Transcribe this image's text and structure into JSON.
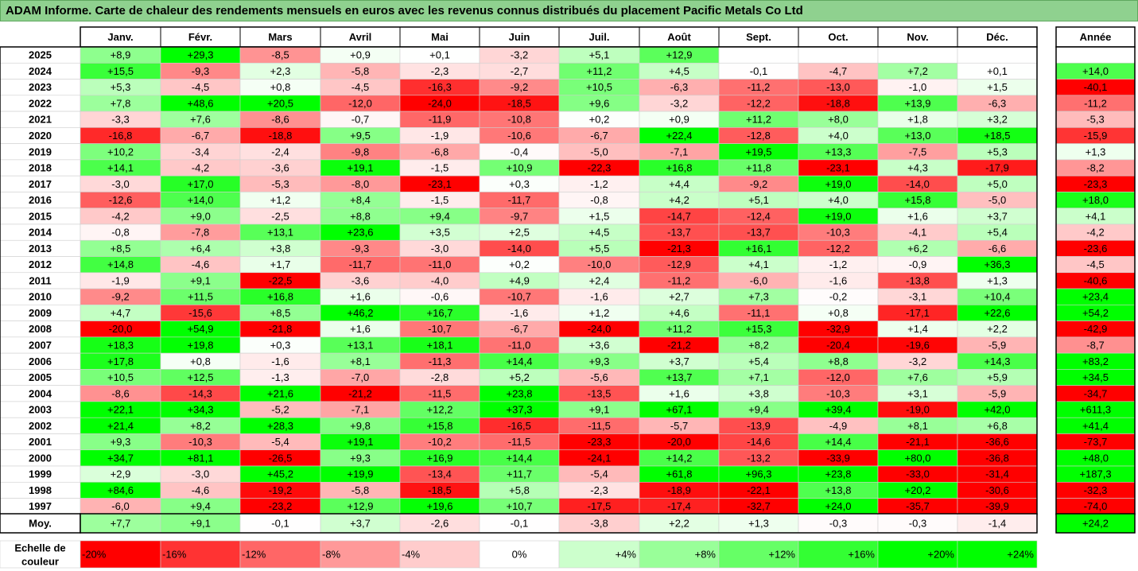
{
  "title": "ADAM Informe. Carte de chaleur des rendements mensuels en euros avec les revenus connus distribués du placement Pacific Metals Co Ltd",
  "chart_data": {
    "type": "heatmap",
    "columns": [
      "Janv.",
      "Févr.",
      "Mars",
      "Avril",
      "Mai",
      "Juin",
      "Juil.",
      "Août",
      "Sept.",
      "Oct.",
      "Nov.",
      "Déc."
    ],
    "annual_header": "Année",
    "rows": [
      {
        "year": "2025",
        "values": [
          8.9,
          29.3,
          -8.5,
          0.9,
          0.1,
          -3.2,
          5.1,
          12.9,
          null,
          null,
          null,
          null
        ],
        "annual": null
      },
      {
        "year": "2024",
        "values": [
          15.5,
          -9.3,
          2.3,
          -5.8,
          -2.3,
          -2.7,
          11.2,
          4.5,
          -0.1,
          -4.7,
          7.2,
          0.1
        ],
        "annual": 14.0
      },
      {
        "year": "2023",
        "values": [
          5.3,
          -4.5,
          0.8,
          -4.5,
          -16.3,
          -9.2,
          10.5,
          -6.3,
          -11.2,
          -13.0,
          -1.0,
          1.5
        ],
        "annual": -40.1
      },
      {
        "year": "2022",
        "values": [
          7.8,
          48.6,
          20.5,
          -12.0,
          -24.0,
          -18.5,
          9.6,
          -3.2,
          -12.2,
          -18.8,
          13.9,
          -6.3
        ],
        "annual": -11.2
      },
      {
        "year": "2021",
        "values": [
          -3.3,
          7.6,
          -8.6,
          -0.7,
          -11.9,
          -10.8,
          0.2,
          0.9,
          11.2,
          8.0,
          1.8,
          3.2
        ],
        "annual": -5.3
      },
      {
        "year": "2020",
        "values": [
          -16.8,
          -6.7,
          -18.8,
          9.5,
          -1.9,
          -10.6,
          -6.7,
          22.4,
          -12.8,
          4.0,
          13.0,
          18.5
        ],
        "annual": -15.9
      },
      {
        "year": "2019",
        "values": [
          10.2,
          -3.4,
          -2.4,
          -9.8,
          -6.8,
          -0.4,
          -5.0,
          -7.1,
          19.5,
          13.3,
          -7.5,
          5.3
        ],
        "annual": 1.3
      },
      {
        "year": "2018",
        "values": [
          14.1,
          -4.2,
          -3.6,
          19.1,
          -1.5,
          10.9,
          -22.3,
          16.8,
          11.8,
          -23.1,
          4.3,
          -17.9
        ],
        "annual": -8.2
      },
      {
        "year": "2017",
        "values": [
          -3.0,
          17.0,
          -5.3,
          -8.0,
          -23.1,
          0.3,
          -1.2,
          4.4,
          -9.2,
          19.0,
          -14.0,
          5.0
        ],
        "annual": -23.3
      },
      {
        "year": "2016",
        "values": [
          -12.6,
          14.0,
          1.2,
          8.4,
          -1.5,
          -11.7,
          -0.8,
          4.2,
          5.1,
          4.0,
          15.8,
          -5.0
        ],
        "annual": 18.0
      },
      {
        "year": "2015",
        "values": [
          -4.2,
          9.0,
          -2.5,
          8.8,
          9.4,
          -9.7,
          1.5,
          -14.7,
          -12.4,
          19.0,
          1.6,
          3.7
        ],
        "annual": 4.1
      },
      {
        "year": "2014",
        "values": [
          -0.8,
          -7.8,
          13.1,
          23.6,
          3.5,
          2.5,
          4.5,
          -13.7,
          -13.7,
          -10.3,
          -4.1,
          5.4
        ],
        "annual": -4.2
      },
      {
        "year": "2013",
        "values": [
          8.5,
          6.4,
          3.8,
          -9.3,
          -3.0,
          -14.0,
          5.5,
          -21.3,
          16.1,
          -12.2,
          6.2,
          -6.6
        ],
        "annual": -23.6
      },
      {
        "year": "2012",
        "values": [
          14.8,
          -4.6,
          1.7,
          -11.7,
          -11.0,
          0.2,
          -10.0,
          -12.9,
          4.1,
          -1.2,
          -0.9,
          36.3
        ],
        "annual": -4.5
      },
      {
        "year": "2011",
        "values": [
          -1.9,
          9.1,
          -22.5,
          -3.6,
          -4.0,
          4.9,
          2.4,
          -11.2,
          -6.0,
          -1.6,
          -13.8,
          1.3
        ],
        "annual": -40.6
      },
      {
        "year": "2010",
        "values": [
          -9.2,
          11.5,
          16.8,
          1.6,
          -0.6,
          -10.7,
          -1.6,
          2.7,
          7.3,
          -0.2,
          -3.1,
          10.4
        ],
        "annual": 23.4
      },
      {
        "year": "2009",
        "values": [
          4.7,
          -15.6,
          8.5,
          46.2,
          16.7,
          -1.6,
          1.2,
          4.6,
          -11.1,
          0.8,
          -17.1,
          22.6
        ],
        "annual": 54.2
      },
      {
        "year": "2008",
        "values": [
          -20.0,
          54.9,
          -21.8,
          1.6,
          -10.7,
          -6.7,
          -24.0,
          11.2,
          15.3,
          -32.9,
          1.4,
          2.2
        ],
        "annual": -42.9
      },
      {
        "year": "2007",
        "values": [
          18.3,
          19.8,
          0.3,
          13.1,
          18.1,
          -11.0,
          3.6,
          -21.2,
          8.2,
          -20.4,
          -19.6,
          -5.9
        ],
        "annual": -8.7
      },
      {
        "year": "2006",
        "values": [
          17.8,
          0.8,
          -1.6,
          8.1,
          -11.3,
          14.4,
          9.3,
          3.7,
          5.4,
          8.8,
          -3.2,
          14.3
        ],
        "annual": 83.2
      },
      {
        "year": "2005",
        "values": [
          10.5,
          12.5,
          -1.3,
          -7.0,
          -2.8,
          5.2,
          -5.6,
          13.7,
          7.1,
          -12.0,
          7.6,
          5.9
        ],
        "annual": 34.5
      },
      {
        "year": "2004",
        "values": [
          -8.6,
          -14.3,
          21.6,
          -21.2,
          -11.5,
          23.8,
          -13.5,
          1.6,
          3.8,
          -10.3,
          3.1,
          -5.9
        ],
        "annual": -34.7
      },
      {
        "year": "2003",
        "values": [
          22.1,
          34.3,
          -5.2,
          -7.1,
          12.2,
          37.3,
          9.1,
          67.1,
          9.4,
          39.4,
          -19.0,
          42.0
        ],
        "annual": 611.3
      },
      {
        "year": "2002",
        "values": [
          21.4,
          8.2,
          28.3,
          9.8,
          15.8,
          -16.5,
          -11.5,
          -5.7,
          -13.9,
          -4.9,
          8.1,
          6.8
        ],
        "annual": 41.4
      },
      {
        "year": "2001",
        "values": [
          9.3,
          -10.3,
          -5.4,
          19.1,
          -10.2,
          -11.5,
          -23.3,
          -20.0,
          -14.6,
          14.4,
          -21.1,
          -36.6
        ],
        "annual": -73.7
      },
      {
        "year": "2000",
        "values": [
          34.7,
          81.1,
          -26.5,
          9.3,
          16.9,
          14.4,
          -24.1,
          14.2,
          -13.2,
          -33.9,
          80.0,
          -36.8
        ],
        "annual": 48.0
      },
      {
        "year": "1999",
        "values": [
          2.9,
          -3.0,
          45.2,
          19.9,
          -13.4,
          11.7,
          -5.4,
          61.8,
          96.3,
          23.8,
          -33.0,
          -31.4
        ],
        "annual": 187.3
      },
      {
        "year": "1998",
        "values": [
          84.6,
          -4.6,
          -19.2,
          -5.8,
          -18.5,
          5.8,
          -2.3,
          -18.9,
          -22.1,
          13.8,
          20.2,
          -30.6
        ],
        "annual": -32.3
      },
      {
        "year": "1997",
        "values": [
          -6.0,
          9.4,
          -23.2,
          12.9,
          19.6,
          10.7,
          -17.5,
          -17.4,
          -32.7,
          24.0,
          -35.7,
          -39.9
        ],
        "annual": -74.0
      }
    ],
    "average": {
      "label": "Moy.",
      "values": [
        7.7,
        9.1,
        -0.1,
        3.7,
        -2.6,
        -0.1,
        -3.8,
        2.2,
        1.3,
        -0.3,
        -0.3,
        -1.4
      ],
      "annual": 24.2
    },
    "legend": {
      "label_line1": "Echelle de",
      "label_line2": "couleur",
      "steps": [
        {
          "label": "-20%",
          "color": "#ff0000"
        },
        {
          "label": "-16%",
          "color": "#ff3333"
        },
        {
          "label": "-12%",
          "color": "#ff6666"
        },
        {
          "label": "-8%",
          "color": "#ff9999"
        },
        {
          "label": "-4%",
          "color": "#ffcccc"
        },
        {
          "label": "0%",
          "color": "#ffffff"
        },
        {
          "label": "+4%",
          "color": "#ccffcc"
        },
        {
          "label": "+8%",
          "color": "#99ff99"
        },
        {
          "label": "+12%",
          "color": "#66ff66"
        },
        {
          "label": "+16%",
          "color": "#33ff33"
        },
        {
          "label": "+20%",
          "color": "#00ff00"
        },
        {
          "label": "+24%",
          "color": "#00ff00"
        }
      ]
    },
    "colors": {
      "negative": "#ff0000",
      "positive": "#00ff00",
      "neutral": "#ffffff",
      "title_bg": "#8fd18f"
    }
  }
}
